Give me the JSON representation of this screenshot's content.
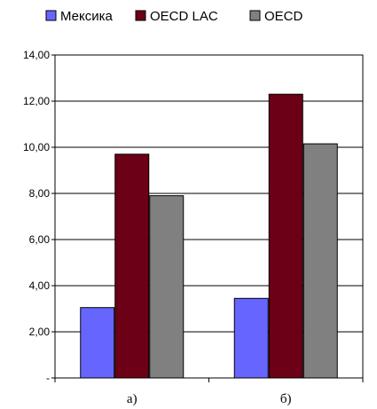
{
  "chart_data": {
    "type": "bar",
    "categories": [
      "а)",
      "б)"
    ],
    "series": [
      {
        "name": "Мексика",
        "color": "#6666ff",
        "values": [
          3.05,
          3.45
        ]
      },
      {
        "name": "OECD LAC",
        "color": "#6b0016",
        "values": [
          9.7,
          12.3
        ]
      },
      {
        "name": "OECD",
        "color": "#808080",
        "values": [
          7.9,
          10.15
        ]
      }
    ],
    "ylim": [
      0,
      14
    ],
    "y_ticks": [
      "-",
      "2,00",
      "4,00",
      "6,00",
      "8,00",
      "10,00",
      "12,00",
      "14,00"
    ],
    "grid": true,
    "legend_position": "top"
  }
}
